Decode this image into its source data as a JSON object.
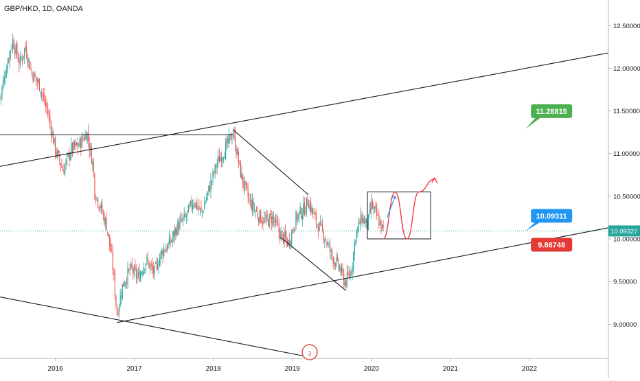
{
  "header": {
    "symbol_line": "GBP/HKD, 1D, OANDA"
  },
  "colors": {
    "bull": "#26a69a",
    "bear": "#ef5350",
    "line": "#131722",
    "price_line": "#2196f3",
    "label_green": "#4caf50",
    "label_blue": "#2196f3",
    "label_red": "#e53935",
    "projection_red": "#f23645",
    "projection_blue": "#2196f3",
    "axis_text": "#131722",
    "last_price_tag": "#26a69a"
  },
  "events_badge": {
    "count": "3"
  },
  "chart_data": {
    "type": "candlestick",
    "title": "GBP/HKD, 1D, OANDA",
    "x_axis": {
      "ticks": [
        "2016",
        "2017",
        "2018",
        "2019",
        "2020",
        "2021",
        "2022"
      ],
      "range": [
        2015.3,
        2023.0
      ]
    },
    "y_axis": {
      "ticks": [
        "12.50000",
        "12.00000",
        "11.50000",
        "11.00000",
        "10.50000",
        "10.00000",
        "9.50000",
        "9.00000"
      ],
      "range": [
        8.6,
        12.8
      ],
      "position": "right"
    },
    "last_price": {
      "value": 10.09327,
      "label": "10.09327"
    },
    "price_path": [
      [
        2015.3,
        11.65
      ],
      [
        2015.4,
        12.1
      ],
      [
        2015.46,
        12.33
      ],
      [
        2015.55,
        12.05
      ],
      [
        2015.62,
        12.25
      ],
      [
        2015.7,
        11.95
      ],
      [
        2015.8,
        11.8
      ],
      [
        2015.9,
        11.5
      ],
      [
        2016.0,
        11.05
      ],
      [
        2016.1,
        10.8
      ],
      [
        2016.2,
        11.05
      ],
      [
        2016.3,
        11.1
      ],
      [
        2016.4,
        11.25
      ],
      [
        2016.48,
        10.85
      ],
      [
        2016.5,
        10.55
      ],
      [
        2016.58,
        10.35
      ],
      [
        2016.65,
        10.15
      ],
      [
        2016.72,
        9.75
      ],
      [
        2016.78,
        9.12
      ],
      [
        2016.85,
        9.45
      ],
      [
        2016.95,
        9.65
      ],
      [
        2017.05,
        9.55
      ],
      [
        2017.15,
        9.75
      ],
      [
        2017.25,
        9.6
      ],
      [
        2017.35,
        9.85
      ],
      [
        2017.45,
        9.95
      ],
      [
        2017.55,
        10.15
      ],
      [
        2017.65,
        10.25
      ],
      [
        2017.75,
        10.45
      ],
      [
        2017.85,
        10.3
      ],
      [
        2017.95,
        10.6
      ],
      [
        2018.05,
        10.9
      ],
      [
        2018.15,
        11.05
      ],
      [
        2018.25,
        11.25
      ],
      [
        2018.35,
        10.75
      ],
      [
        2018.45,
        10.45
      ],
      [
        2018.55,
        10.3
      ],
      [
        2018.65,
        10.2
      ],
      [
        2018.75,
        10.25
      ],
      [
        2018.85,
        10.05
      ],
      [
        2018.95,
        9.95
      ],
      [
        2019.05,
        10.25
      ],
      [
        2019.15,
        10.35
      ],
      [
        2019.2,
        10.45
      ],
      [
        2019.3,
        10.2
      ],
      [
        2019.4,
        10.05
      ],
      [
        2019.5,
        9.8
      ],
      [
        2019.6,
        9.65
      ],
      [
        2019.67,
        9.48
      ],
      [
        2019.75,
        9.65
      ],
      [
        2019.8,
        10.05
      ],
      [
        2019.88,
        10.25
      ],
      [
        2019.95,
        10.15
      ],
      [
        2020.0,
        10.4
      ],
      [
        2020.05,
        10.3
      ],
      [
        2020.1,
        10.2
      ],
      [
        2020.15,
        10.09
      ]
    ],
    "trendlines": [
      {
        "from": [
          2015.3,
          10.85
        ],
        "to": [
          2023.0,
          12.18
        ]
      },
      {
        "from": [
          2015.3,
          9.32
        ],
        "to": [
          2019.3,
          8.6
        ]
      },
      {
        "from": [
          2016.78,
          9.02
        ],
        "to": [
          2023.0,
          10.13
        ]
      },
      {
        "from": [
          2015.3,
          11.22
        ],
        "to": [
          2018.25,
          11.22
        ]
      },
      {
        "from": [
          2018.25,
          11.28
        ],
        "to": [
          2019.2,
          10.52
        ]
      },
      {
        "from": [
          2018.85,
          10.02
        ],
        "to": [
          2019.67,
          9.4
        ]
      }
    ],
    "range_box": {
      "top": 10.55,
      "bottom": 10.0,
      "x_start": 2019.95,
      "x_end": 2020.75
    },
    "projection_red": [
      [
        2020.15,
        10.0
      ],
      [
        2020.3,
        10.55
      ],
      [
        2020.45,
        10.0
      ],
      [
        2020.6,
        10.55
      ],
      [
        2020.8,
        10.7
      ]
    ],
    "projection_blue": [
      [
        2020.2,
        10.25
      ],
      [
        2020.3,
        10.5
      ]
    ],
    "callouts": [
      {
        "label": "11.28815",
        "color": "green",
        "price": 11.28815,
        "anchor_x": 2021.95
      },
      {
        "label": "10.09311",
        "color": "blue",
        "price": 10.09311,
        "anchor_x": 2021.95
      },
      {
        "label": "9.86748",
        "color": "red",
        "price": 9.86748,
        "anchor_x": 2021.95
      }
    ]
  }
}
